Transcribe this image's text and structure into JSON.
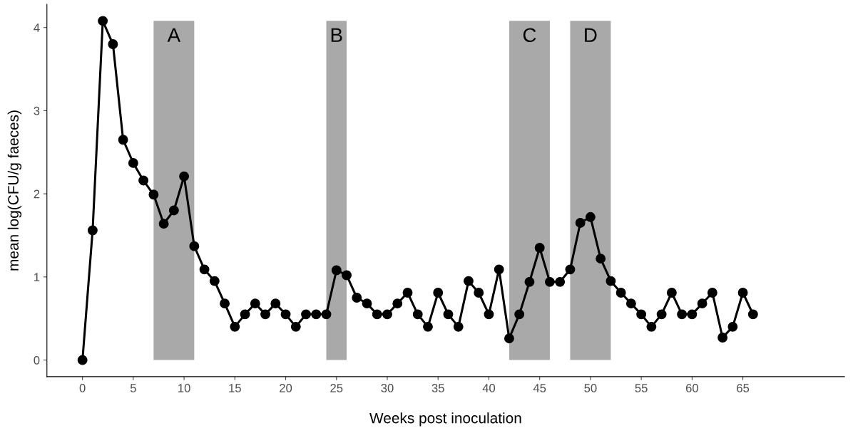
{
  "chart_data": {
    "type": "line",
    "xlabel": "Weeks post inoculation",
    "ylabel": "mean log(CFU/g faeces)",
    "x": [
      0,
      1,
      2,
      3,
      4,
      5,
      6,
      7,
      8,
      9,
      10,
      11,
      12,
      13,
      14,
      15,
      16,
      17,
      18,
      19,
      20,
      21,
      22,
      23,
      24,
      25,
      26,
      27,
      28,
      29,
      30,
      31,
      32,
      33,
      34,
      35,
      36,
      37,
      38,
      39,
      40,
      41,
      42,
      43,
      44,
      45,
      46,
      47,
      48,
      49,
      50,
      51,
      52,
      53,
      54,
      55,
      56,
      57,
      58,
      59,
      60,
      61,
      62,
      63,
      64,
      65,
      66
    ],
    "values": [
      0,
      1.56,
      4.08,
      3.8,
      2.65,
      2.37,
      2.16,
      1.99,
      1.64,
      1.8,
      2.21,
      1.37,
      1.09,
      0.95,
      0.68,
      0.4,
      0.55,
      0.68,
      0.55,
      0.68,
      0.55,
      0.4,
      0.55,
      0.55,
      0.55,
      1.08,
      1.02,
      0.75,
      0.68,
      0.55,
      0.55,
      0.68,
      0.81,
      0.55,
      0.4,
      0.81,
      0.55,
      0.4,
      0.95,
      0.81,
      0.55,
      1.09,
      0.26,
      0.55,
      0.94,
      1.35,
      0.94,
      0.94,
      1.09,
      1.65,
      1.72,
      1.22,
      0.95,
      0.81,
      0.68,
      0.55,
      0.4,
      0.55,
      0.81,
      0.55,
      0.55,
      0.68,
      0.81,
      0.27,
      0.4,
      0.81,
      0.55
    ],
    "color": "#000000",
    "marker": "circle",
    "line_style": "solid",
    "grid": false,
    "xlim": [
      -3.5,
      75
    ],
    "ylim": [
      -0.2,
      4.28
    ],
    "xticks": [
      0,
      5,
      10,
      15,
      20,
      25,
      30,
      35,
      40,
      45,
      50,
      55,
      60,
      65
    ],
    "yticks": [
      0,
      1,
      2,
      3,
      4
    ],
    "bands": [
      {
        "axis": "x",
        "from": 7,
        "to": 11,
        "label": "A",
        "color": "#a9a9a9"
      },
      {
        "axis": "x",
        "from": 24,
        "to": 26,
        "label": "B",
        "color": "#a9a9a9"
      },
      {
        "axis": "x",
        "from": 42,
        "to": 46,
        "label": "C",
        "color": "#a9a9a9"
      },
      {
        "axis": "x",
        "from": 48,
        "to": 52,
        "label": "D",
        "color": "#a9a9a9"
      }
    ]
  }
}
